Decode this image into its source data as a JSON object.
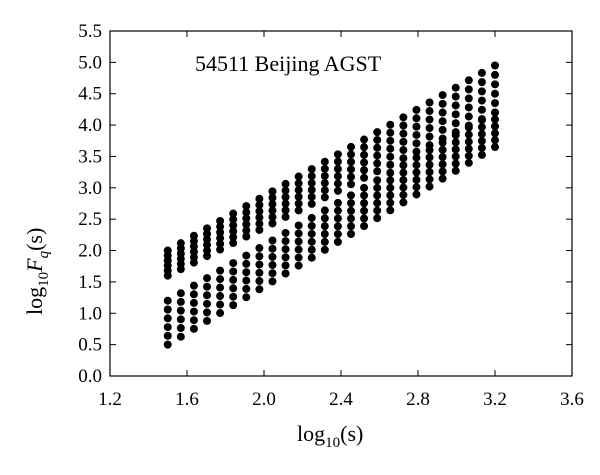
{
  "chart_data": {
    "type": "scatter",
    "annotation": "54511 Beijing AGST",
    "xlabel": {
      "main": "log",
      "sub": "10",
      "tail": "(s)"
    },
    "ylabel": {
      "main": "log",
      "sub": "10",
      "var": "F",
      "varsub": "q",
      "tail": "(s)"
    },
    "xlim": [
      1.2,
      3.6
    ],
    "ylim": [
      0.0,
      5.5
    ],
    "xticks": [
      "1.2",
      "1.6",
      "2.0",
      "2.4",
      "2.8",
      "3.2",
      "3.6"
    ],
    "yticks": [
      "0.0",
      "0.5",
      "1.0",
      "1.5",
      "2.0",
      "2.5",
      "3.0",
      "3.5",
      "4.0",
      "4.5",
      "5.0",
      "5.5"
    ],
    "grid": false,
    "marker_color": "#000000",
    "series": [
      {
        "x_range": [
          1.5,
          3.2
        ],
        "n_columns": 26,
        "points_per_column": 6,
        "y_bottom_start": 1.6,
        "y_bottom_end": 4.2,
        "y_top_start": 2.0,
        "y_top_end": 4.95
      },
      {
        "x_range": [
          1.5,
          3.2
        ],
        "n_columns": 26,
        "points_per_column": 6,
        "y_bottom_start": 0.5,
        "y_bottom_end": 3.65,
        "y_top_start": 1.2,
        "y_top_end": 4.2
      }
    ]
  }
}
